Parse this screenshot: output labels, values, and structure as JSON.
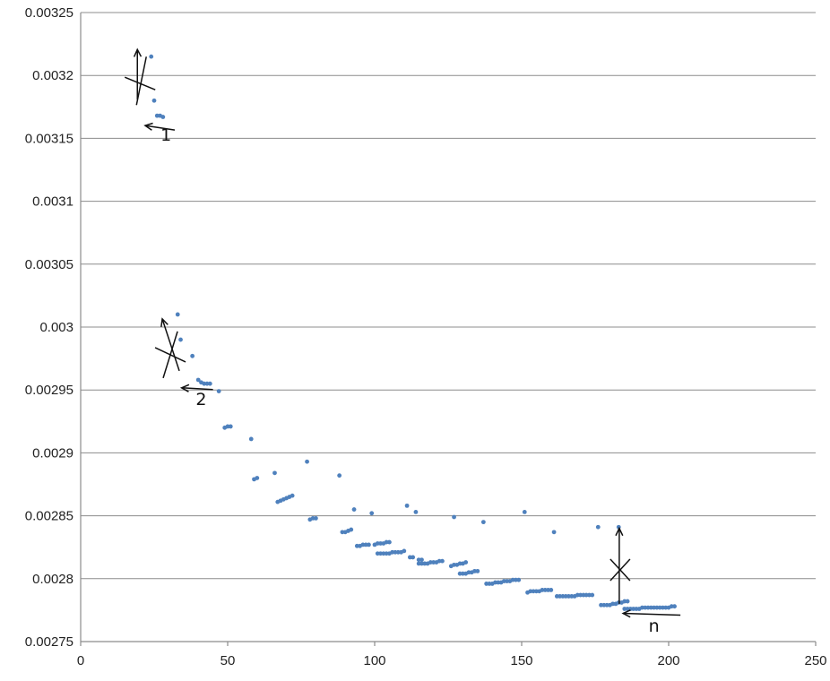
{
  "chart_data": {
    "type": "scatter",
    "title": "",
    "xlabel": "",
    "ylabel": "",
    "xlim": [
      0,
      250
    ],
    "ylim": [
      0.00275,
      0.00325
    ],
    "grid": true,
    "legend": "none",
    "x_ticks": [
      "0",
      "50",
      "100",
      "150",
      "200",
      "250"
    ],
    "y_ticks": [
      "0.00275",
      "0.0028",
      "0.00285",
      "0.0029",
      "0.00295",
      "0.003",
      "0.00305",
      "0.0031",
      "0.00315",
      "0.0032",
      "0.00325"
    ],
    "marker_color": "#4f81bd",
    "series": [
      {
        "points": [
          [
            24,
            0.003215
          ],
          [
            25,
            0.00318
          ],
          [
            26,
            0.003168
          ],
          [
            27,
            0.003168
          ],
          [
            28,
            0.003167
          ],
          [
            33,
            0.00301
          ],
          [
            34,
            0.00299
          ],
          [
            38,
            0.002977
          ],
          [
            40,
            0.002958
          ],
          [
            41,
            0.002956
          ],
          [
            42,
            0.002955
          ],
          [
            43,
            0.002955
          ],
          [
            44,
            0.002955
          ],
          [
            47,
            0.002949
          ],
          [
            49,
            0.00292
          ],
          [
            50,
            0.002921
          ],
          [
            51,
            0.002921
          ],
          [
            58,
            0.002911
          ],
          [
            59,
            0.002879
          ],
          [
            60,
            0.00288
          ],
          [
            66,
            0.002884
          ],
          [
            67,
            0.002861
          ],
          [
            68,
            0.002862
          ],
          [
            69,
            0.002863
          ],
          [
            70,
            0.002864
          ],
          [
            71,
            0.002865
          ],
          [
            72,
            0.002866
          ],
          [
            77,
            0.002893
          ],
          [
            78,
            0.002847
          ],
          [
            79,
            0.002848
          ],
          [
            80,
            0.002848
          ],
          [
            88,
            0.002882
          ],
          [
            89,
            0.002837
          ],
          [
            90,
            0.002837
          ],
          [
            91,
            0.002838
          ],
          [
            92,
            0.002839
          ],
          [
            93,
            0.002855
          ],
          [
            94,
            0.002826
          ],
          [
            95,
            0.002826
          ],
          [
            96,
            0.002827
          ],
          [
            97,
            0.002827
          ],
          [
            98,
            0.002827
          ],
          [
            99,
            0.002852
          ],
          [
            100,
            0.002827
          ],
          [
            101,
            0.002828
          ],
          [
            102,
            0.002828
          ],
          [
            103,
            0.002828
          ],
          [
            104,
            0.002829
          ],
          [
            105,
            0.002829
          ],
          [
            101,
            0.00282
          ],
          [
            102,
            0.00282
          ],
          [
            103,
            0.00282
          ],
          [
            104,
            0.00282
          ],
          [
            105,
            0.00282
          ],
          [
            106,
            0.002821
          ],
          [
            107,
            0.002821
          ],
          [
            108,
            0.002821
          ],
          [
            109,
            0.002821
          ],
          [
            110,
            0.002822
          ],
          [
            111,
            0.002858
          ],
          [
            112,
            0.002817
          ],
          [
            113,
            0.002817
          ],
          [
            114,
            0.002853
          ],
          [
            115,
            0.002812
          ],
          [
            116,
            0.002812
          ],
          [
            117,
            0.002812
          ],
          [
            118,
            0.002812
          ],
          [
            119,
            0.002813
          ],
          [
            120,
            0.002813
          ],
          [
            121,
            0.002813
          ],
          [
            122,
            0.002814
          ],
          [
            123,
            0.002814
          ],
          [
            115,
            0.002815
          ],
          [
            116,
            0.002815
          ],
          [
            127,
            0.002849
          ],
          [
            126,
            0.00281
          ],
          [
            127,
            0.002811
          ],
          [
            128,
            0.002811
          ],
          [
            129,
            0.002812
          ],
          [
            130,
            0.002812
          ],
          [
            131,
            0.002813
          ],
          [
            129,
            0.002804
          ],
          [
            130,
            0.002804
          ],
          [
            131,
            0.002804
          ],
          [
            132,
            0.002805
          ],
          [
            133,
            0.002805
          ],
          [
            134,
            0.002806
          ],
          [
            135,
            0.002806
          ],
          [
            137,
            0.002845
          ],
          [
            138,
            0.002796
          ],
          [
            139,
            0.002796
          ],
          [
            140,
            0.002796
          ],
          [
            141,
            0.002797
          ],
          [
            142,
            0.002797
          ],
          [
            143,
            0.002797
          ],
          [
            144,
            0.002798
          ],
          [
            145,
            0.002798
          ],
          [
            146,
            0.002798
          ],
          [
            147,
            0.002799
          ],
          [
            148,
            0.002799
          ],
          [
            149,
            0.002799
          ],
          [
            151,
            0.002853
          ],
          [
            152,
            0.002789
          ],
          [
            153,
            0.00279
          ],
          [
            154,
            0.00279
          ],
          [
            155,
            0.00279
          ],
          [
            156,
            0.00279
          ],
          [
            157,
            0.002791
          ],
          [
            158,
            0.002791
          ],
          [
            159,
            0.002791
          ],
          [
            160,
            0.002791
          ],
          [
            161,
            0.002837
          ],
          [
            162,
            0.002786
          ],
          [
            163,
            0.002786
          ],
          [
            164,
            0.002786
          ],
          [
            165,
            0.002786
          ],
          [
            166,
            0.002786
          ],
          [
            167,
            0.002786
          ],
          [
            168,
            0.002786
          ],
          [
            169,
            0.002787
          ],
          [
            170,
            0.002787
          ],
          [
            171,
            0.002787
          ],
          [
            172,
            0.002787
          ],
          [
            173,
            0.002787
          ],
          [
            174,
            0.002787
          ],
          [
            176,
            0.002841
          ],
          [
            177,
            0.002779
          ],
          [
            178,
            0.002779
          ],
          [
            179,
            0.002779
          ],
          [
            180,
            0.002779
          ],
          [
            181,
            0.00278
          ],
          [
            182,
            0.00278
          ],
          [
            183,
            0.002781
          ],
          [
            184,
            0.002781
          ],
          [
            185,
            0.002782
          ],
          [
            186,
            0.002782
          ],
          [
            183,
            0.002841
          ],
          [
            185,
            0.002776
          ],
          [
            186,
            0.002776
          ],
          [
            187,
            0.002776
          ],
          [
            188,
            0.002776
          ],
          [
            189,
            0.002776
          ],
          [
            190,
            0.002776
          ],
          [
            191,
            0.002777
          ],
          [
            192,
            0.002777
          ],
          [
            193,
            0.002777
          ],
          [
            194,
            0.002777
          ],
          [
            195,
            0.002777
          ],
          [
            196,
            0.002777
          ],
          [
            197,
            0.002777
          ],
          [
            198,
            0.002777
          ],
          [
            199,
            0.002777
          ],
          [
            200,
            0.002777
          ],
          [
            201,
            0.002778
          ],
          [
            202,
            0.002778
          ]
        ]
      }
    ],
    "annotations": [
      {
        "text": "1",
        "x": 29,
        "y": 0.003148
      },
      {
        "text": "2",
        "x": 41,
        "y": 0.002938
      },
      {
        "text": "n",
        "x": 195,
        "y": 0.002758
      }
    ]
  }
}
